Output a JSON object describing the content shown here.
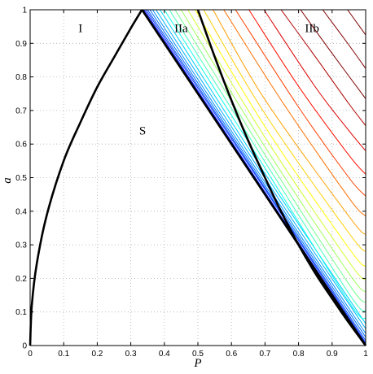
{
  "chart_data": {
    "type": "line",
    "title": "",
    "xlabel": "P",
    "ylabel": "a",
    "xlim": [
      0,
      1
    ],
    "ylim": [
      0,
      1
    ],
    "grid": true,
    "x_ticks": [
      "0",
      "0.1",
      "0.2",
      "0.3",
      "0.4",
      "0.5",
      "0.6",
      "0.7",
      "0.8",
      "0.9",
      "1"
    ],
    "y_ticks": [
      "0",
      "0.1",
      "0.2",
      "0.3",
      "0.4",
      "0.5",
      "0.6",
      "0.7",
      "0.8",
      "0.9",
      "1"
    ],
    "annotations": [
      {
        "text": "I",
        "x": 0.15,
        "y": 0.945
      },
      {
        "text": "IIa",
        "x": 0.45,
        "y": 0.945
      },
      {
        "text": "IIb",
        "x": 0.84,
        "y": 0.945
      },
      {
        "text": "S",
        "x": 0.335,
        "y": 0.64
      }
    ],
    "boundaries": [
      {
        "x": [
          0,
          0.005,
          0.02,
          0.05,
          0.1,
          0.15,
          0.2,
          0.25,
          0.3,
          0.3333
        ],
        "y": [
          0,
          0.12,
          0.245,
          0.39,
          0.55,
          0.665,
          0.77,
          0.858,
          0.945,
          1.0
        ]
      },
      {
        "x": [
          0.3333,
          1.0
        ],
        "y": [
          1.0,
          0.0
        ]
      },
      {
        "x": [
          0.5,
          0.55,
          0.6,
          0.65,
          0.7,
          0.75,
          0.8,
          0.85,
          0.9,
          0.95,
          1.0
        ],
        "y": [
          1.0,
          0.86,
          0.73,
          0.61,
          0.5,
          0.395,
          0.3,
          0.215,
          0.14,
          0.068,
          0.0
        ]
      }
    ],
    "contours": [
      {
        "color": "#00008f",
        "x": [
          0.3367,
          1.0
        ],
        "y": [
          1.0,
          0.002
        ]
      },
      {
        "color": "#0010ff",
        "x": [
          0.34,
          1.0
        ],
        "y": [
          1.0,
          0.004
        ]
      },
      {
        "color": "#0030ff",
        "x": [
          0.345,
          0.7,
          1.0
        ],
        "y": [
          1.0,
          0.465,
          0.008
        ]
      },
      {
        "color": "#0050ff",
        "x": [
          0.35,
          0.7,
          1.0
        ],
        "y": [
          1.0,
          0.47,
          0.015
        ]
      },
      {
        "color": "#0070ff",
        "x": [
          0.357,
          0.7,
          1.0
        ],
        "y": [
          1.0,
          0.477,
          0.025
        ]
      },
      {
        "color": "#0090ff",
        "x": [
          0.365,
          0.7,
          1.0
        ],
        "y": [
          1.0,
          0.486,
          0.036
        ]
      },
      {
        "color": "#00b0ff",
        "x": [
          0.375,
          0.7,
          1.0
        ],
        "y": [
          1.0,
          0.498,
          0.05
        ]
      },
      {
        "color": "#00d0ff",
        "x": [
          0.387,
          0.7,
          1.0
        ],
        "y": [
          1.0,
          0.512,
          0.065
        ]
      },
      {
        "color": "#10ffef",
        "x": [
          0.4,
          0.7,
          0.95,
          1.0
        ],
        "y": [
          1.0,
          0.528,
          0.13,
          0.08
        ]
      },
      {
        "color": "#40ffbf",
        "x": [
          0.415,
          0.7,
          0.95,
          1.0
        ],
        "y": [
          1.0,
          0.547,
          0.155,
          0.102
        ]
      },
      {
        "color": "#70ff8f",
        "x": [
          0.432,
          0.7,
          0.95,
          1.0
        ],
        "y": [
          1.0,
          0.568,
          0.183,
          0.128
        ]
      },
      {
        "color": "#a0ff5f",
        "x": [
          0.45,
          0.7,
          0.95,
          1.0
        ],
        "y": [
          1.0,
          0.592,
          0.215,
          0.16
        ]
      },
      {
        "color": "#d0ff2f",
        "x": [
          0.47,
          0.7,
          0.95,
          1.0
        ],
        "y": [
          1.0,
          0.62,
          0.25,
          0.195
        ]
      },
      {
        "color": "#ffff00",
        "x": [
          0.492,
          0.7,
          0.95,
          1.0
        ],
        "y": [
          1.0,
          0.652,
          0.29,
          0.235
        ]
      },
      {
        "color": "#ffd000",
        "x": [
          0.517,
          0.7,
          0.95,
          1.0
        ],
        "y": [
          1.0,
          0.69,
          0.335,
          0.28
        ]
      },
      {
        "color": "#ffa000",
        "x": [
          0.545,
          0.7,
          0.95,
          1.0
        ],
        "y": [
          1.0,
          0.732,
          0.385,
          0.33
        ]
      },
      {
        "color": "#ff7000",
        "x": [
          0.577,
          0.75,
          0.95,
          1.0
        ],
        "y": [
          1.0,
          0.728,
          0.44,
          0.385
        ]
      },
      {
        "color": "#ff4000",
        "x": [
          0.612,
          0.8,
          0.95,
          1.0
        ],
        "y": [
          1.0,
          0.71,
          0.5,
          0.445
        ]
      },
      {
        "color": "#ff1000",
        "x": [
          0.652,
          0.8,
          0.95,
          1.0
        ],
        "y": [
          1.0,
          0.772,
          0.567,
          0.51
        ]
      },
      {
        "color": "#df0000",
        "x": [
          0.697,
          0.85,
          0.95,
          1.0
        ],
        "y": [
          1.0,
          0.77,
          0.64,
          0.58
        ]
      },
      {
        "color": "#af0000",
        "x": [
          0.748,
          0.85,
          0.95,
          1.0
        ],
        "y": [
          1.0,
          0.86,
          0.72,
          0.655
        ]
      },
      {
        "color": "#800000",
        "x": [
          0.806,
          0.9,
          1.0
        ],
        "y": [
          1.0,
          0.87,
          0.735
        ]
      },
      {
        "color": "#800000",
        "x": [
          0.872,
          0.95,
          1.0
        ],
        "y": [
          1.0,
          0.895,
          0.825
        ]
      },
      {
        "color": "#800000",
        "x": [
          0.946,
          1.0
        ],
        "y": [
          1.0,
          0.925
        ]
      }
    ]
  }
}
